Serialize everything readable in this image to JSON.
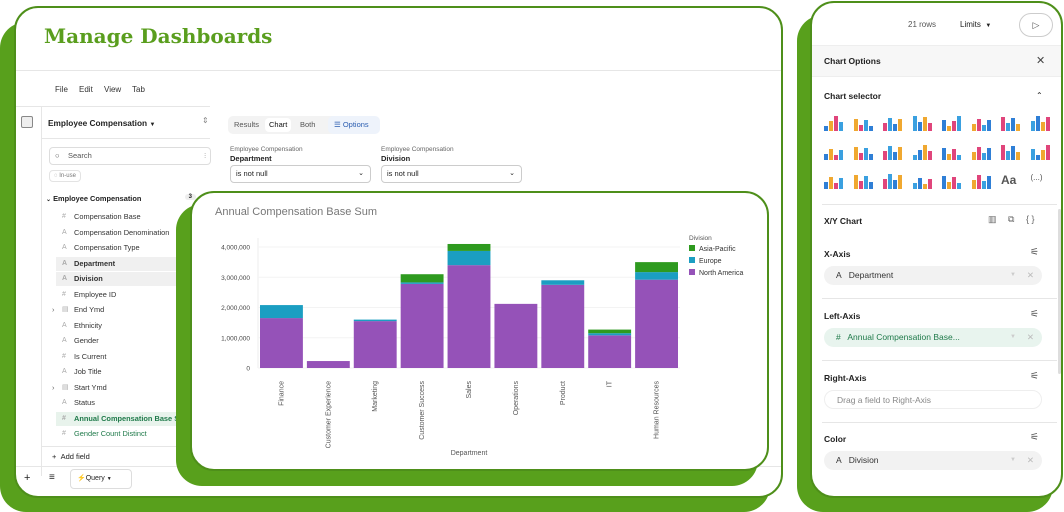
{
  "app": {
    "title": "Manage Dashboards"
  },
  "menu": [
    "File",
    "Edit",
    "View",
    "Tab"
  ],
  "sidebar": {
    "explore": "Employee Compensation",
    "search_placeholder": "Search",
    "in_use": "In-use",
    "group": {
      "label": "Employee Compensation",
      "count": "3"
    },
    "fields": [
      {
        "label": "Compensation Base",
        "type": "#"
      },
      {
        "label": "Compensation Denomination",
        "type": "A"
      },
      {
        "label": "Compensation Type",
        "type": "A"
      },
      {
        "label": "Department",
        "type": "A",
        "selected": true
      },
      {
        "label": "Division",
        "type": "A",
        "selected": true
      },
      {
        "label": "Employee ID",
        "type": "#"
      },
      {
        "label": "End Ymd",
        "type": "date",
        "expandable": true
      },
      {
        "label": "Ethnicity",
        "type": "A"
      },
      {
        "label": "Gender",
        "type": "A"
      },
      {
        "label": "Is Current",
        "type": "#"
      },
      {
        "label": "Job Title",
        "type": "A"
      },
      {
        "label": "Start Ymd",
        "type": "date",
        "expandable": true
      },
      {
        "label": "Status",
        "type": "A"
      },
      {
        "label": "Annual Compensation Base Sum",
        "type": "#",
        "metric": true,
        "selected": true
      },
      {
        "label": "Gender Count Distinct",
        "type": "#",
        "metric": true
      }
    ],
    "add_field": "Add field"
  },
  "bottom": {
    "query_tab": "Query"
  },
  "view_tabs": {
    "results": "Results",
    "chart": "Chart",
    "both": "Both",
    "options": "Options",
    "active": "Chart"
  },
  "filters": [
    {
      "source": "Employee Compensation",
      "field": "Department",
      "value": "is not null"
    },
    {
      "source": "Employee Compensation",
      "field": "Division",
      "value": "is not null"
    }
  ],
  "toolbar": {
    "rows": "21 rows",
    "limits": "Limits"
  },
  "options": {
    "title": "Chart Options",
    "chart_selector": "Chart selector",
    "chart_type": "X/Y Chart",
    "x_axis": {
      "label": "X-Axis",
      "field": "Department"
    },
    "left_axis": {
      "label": "Left-Axis",
      "field": "Annual Compensation Base..."
    },
    "right_axis": {
      "label": "Right-Axis",
      "placeholder": "Drag a field to Right-Axis"
    },
    "color": {
      "label": "Color",
      "field": "Division"
    },
    "text_icon": "Aa",
    "more_icon": "(...)"
  },
  "colors": {
    "brand": "#58a01c",
    "asia_pacific": "#2e9a1f",
    "europe": "#1b9ec2",
    "north_america": "#9552b8"
  },
  "chart_data": {
    "type": "bar",
    "stacked": true,
    "title": "Annual Compensation Base Sum",
    "xlabel": "Department",
    "ylabel": "",
    "ylim": [
      0,
      4200000
    ],
    "yticks": [
      "0",
      "1,000,000",
      "2,000,000",
      "3,000,000",
      "4,000,000"
    ],
    "ytick_values": [
      0,
      1000000,
      2000000,
      3000000,
      4000000
    ],
    "legend_title": "Division",
    "legend_position": "right",
    "categories": [
      "Finance",
      "Customer Experience",
      "Marketing",
      "Customer Success",
      "Sales",
      "Operations",
      "Product",
      "IT",
      "Human Resources"
    ],
    "series": [
      {
        "name": "North America",
        "color": "#9552b8",
        "values": [
          1650000,
          230000,
          1550000,
          2780000,
          3400000,
          2120000,
          2750000,
          1080000,
          2920000
        ]
      },
      {
        "name": "Europe",
        "color": "#1b9ec2",
        "values": [
          430000,
          0,
          50000,
          50000,
          470000,
          0,
          150000,
          70000,
          250000
        ]
      },
      {
        "name": "Asia-Pacific",
        "color": "#2e9a1f",
        "values": [
          0,
          0,
          0,
          270000,
          230000,
          0,
          0,
          120000,
          330000
        ]
      }
    ]
  }
}
